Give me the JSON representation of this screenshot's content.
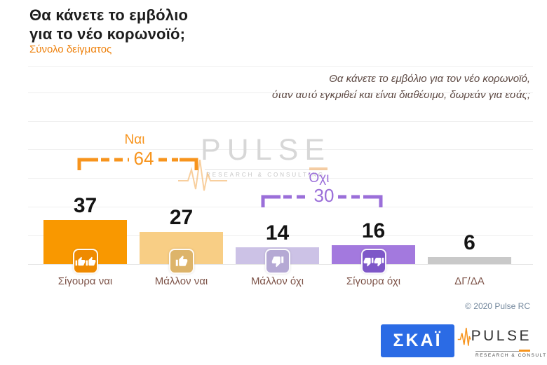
{
  "header": {
    "title_line1": "Θα κάνετε το εμβόλιο",
    "title_line2": "για το νέο κορωνοϊό;",
    "subtitle": "Σύνολο δείγματος"
  },
  "question": {
    "line1": "Θα κάνετε το εμβόλιο για τον νέο κορωνοϊό,",
    "line2": "όταν αυτό εγκριθεί και είναι διαθέσιμο, δωρεάν για εσάς;"
  },
  "chart_data": {
    "type": "bar",
    "title": "Θα κάνετε το εμβόλιο για το νέο κορωνοϊό;",
    "categories": [
      "Σίγουρα ναι",
      "Μάλλον ναι",
      "Μάλλον όχι",
      "Σίγουρα όχι",
      "ΔΓ/ΔΑ"
    ],
    "values": [
      37,
      27,
      14,
      16,
      6
    ],
    "value_unit": "%",
    "bar_colors": [
      "#f99800",
      "#f8ce85",
      "#ccc2e6",
      "#a379de",
      "#c9c9c9"
    ],
    "icon_names": [
      "thumbs-up-double-icon",
      "thumbs-up-icon",
      "thumbs-down-icon",
      "thumbs-down-double-icon",
      null
    ],
    "icon_colors": [
      "#ef8a00",
      "#ddb46a",
      "#b5a9d4",
      "#7e57c8",
      null
    ],
    "groups": [
      {
        "label": "Ναι",
        "value": 64,
        "color": "#f7941d",
        "covers": [
          "Σίγουρα ναι",
          "Μάλλον ναι"
        ]
      },
      {
        "label": "Όχι",
        "value": 30,
        "color": "#9b6fd9",
        "covers": [
          "Μάλλον όχι",
          "Σίγουρα όχι"
        ]
      }
    ],
    "grid": true,
    "legend": false,
    "xlabel": "",
    "ylabel": ""
  },
  "watermark": {
    "word": "PULSE",
    "sub": "RESEARCH & CONSULTING"
  },
  "footer": {
    "copyright": "© 2020 Pulse RC",
    "skai_logo_text": "ΣΚΑΪ",
    "pulse_logo_word": "PULSE",
    "pulse_logo_sub": "RESEARCH & CONSULTING"
  },
  "colors": {
    "accent_orange": "#f7941d",
    "accent_purple": "#9b6fd9",
    "label_brown": "#7d5348",
    "question_text": "#5c4842",
    "skai_blue": "#2b6be5",
    "copyright_blue": "#74889d"
  }
}
